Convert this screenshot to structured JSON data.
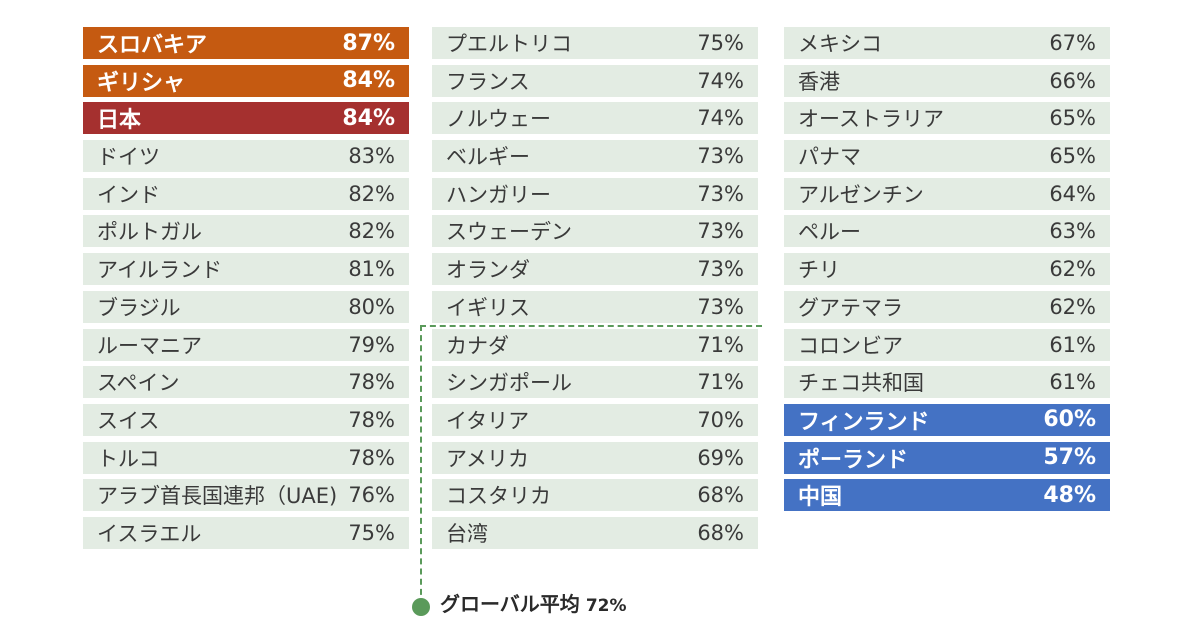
{
  "chart_data": {
    "type": "table",
    "unit": "%",
    "highlight_colors": {
      "top": "#c55a11",
      "japan": "#a5302f",
      "bottom": "#4472c4"
    },
    "global_average": {
      "label": "グローバル平均",
      "value": 72,
      "display": "72%"
    },
    "columns": [
      [
        {
          "country": "スロバキア",
          "value": 87,
          "display": "87%",
          "highlight": "top"
        },
        {
          "country": "ギリシャ",
          "value": 84,
          "display": "84%",
          "highlight": "top"
        },
        {
          "country": "日本",
          "value": 84,
          "display": "84%",
          "highlight": "japan"
        },
        {
          "country": "ドイツ",
          "value": 83,
          "display": "83%"
        },
        {
          "country": "インド",
          "value": 82,
          "display": "82%"
        },
        {
          "country": "ポルトガル",
          "value": 82,
          "display": "82%"
        },
        {
          "country": "アイルランド",
          "value": 81,
          "display": "81%"
        },
        {
          "country": "ブラジル",
          "value": 80,
          "display": "80%"
        },
        {
          "country": "ルーマニア",
          "value": 79,
          "display": "79%"
        },
        {
          "country": "スペイン",
          "value": 78,
          "display": "78%"
        },
        {
          "country": "スイス",
          "value": 78,
          "display": "78%"
        },
        {
          "country": "トルコ",
          "value": 78,
          "display": "78%"
        },
        {
          "country": "アラブ首長国連邦（UAE)",
          "value": 76,
          "display": "76%"
        },
        {
          "country": "イスラエル",
          "value": 75,
          "display": "75%"
        }
      ],
      [
        {
          "country": "プエルトリコ",
          "value": 75,
          "display": "75%"
        },
        {
          "country": "フランス",
          "value": 74,
          "display": "74%"
        },
        {
          "country": "ノルウェー",
          "value": 74,
          "display": "74%"
        },
        {
          "country": "ベルギー",
          "value": 73,
          "display": "73%"
        },
        {
          "country": "ハンガリー",
          "value": 73,
          "display": "73%"
        },
        {
          "country": "スウェーデン",
          "value": 73,
          "display": "73%"
        },
        {
          "country": "オランダ",
          "value": 73,
          "display": "73%"
        },
        {
          "country": "イギリス",
          "value": 73,
          "display": "73%"
        },
        {
          "country": "カナダ",
          "value": 71,
          "display": "71%"
        },
        {
          "country": "シンガポール",
          "value": 71,
          "display": "71%"
        },
        {
          "country": "イタリア",
          "value": 70,
          "display": "70%"
        },
        {
          "country": "アメリカ",
          "value": 69,
          "display": "69%"
        },
        {
          "country": "コスタリカ",
          "value": 68,
          "display": "68%"
        },
        {
          "country": "台湾",
          "value": 68,
          "display": "68%"
        }
      ],
      [
        {
          "country": "メキシコ",
          "value": 67,
          "display": "67%"
        },
        {
          "country": "香港",
          "value": 66,
          "display": "66%"
        },
        {
          "country": "オーストラリア",
          "value": 65,
          "display": "65%"
        },
        {
          "country": "パナマ",
          "value": 65,
          "display": "65%"
        },
        {
          "country": "アルゼンチン",
          "value": 64,
          "display": "64%"
        },
        {
          "country": "ペルー",
          "value": 63,
          "display": "63%"
        },
        {
          "country": "チリ",
          "value": 62,
          "display": "62%"
        },
        {
          "country": "グアテマラ",
          "value": 62,
          "display": "62%"
        },
        {
          "country": "コロンビア",
          "value": 61,
          "display": "61%"
        },
        {
          "country": "チェコ共和国",
          "value": 61,
          "display": "61%"
        },
        {
          "country": "フィンランド",
          "value": 60,
          "display": "60%",
          "highlight": "bottom"
        },
        {
          "country": "ポーランド",
          "value": 57,
          "display": "57%",
          "highlight": "bottom"
        },
        {
          "country": "中国",
          "value": 48,
          "display": "48%",
          "highlight": "bottom"
        }
      ]
    ]
  }
}
